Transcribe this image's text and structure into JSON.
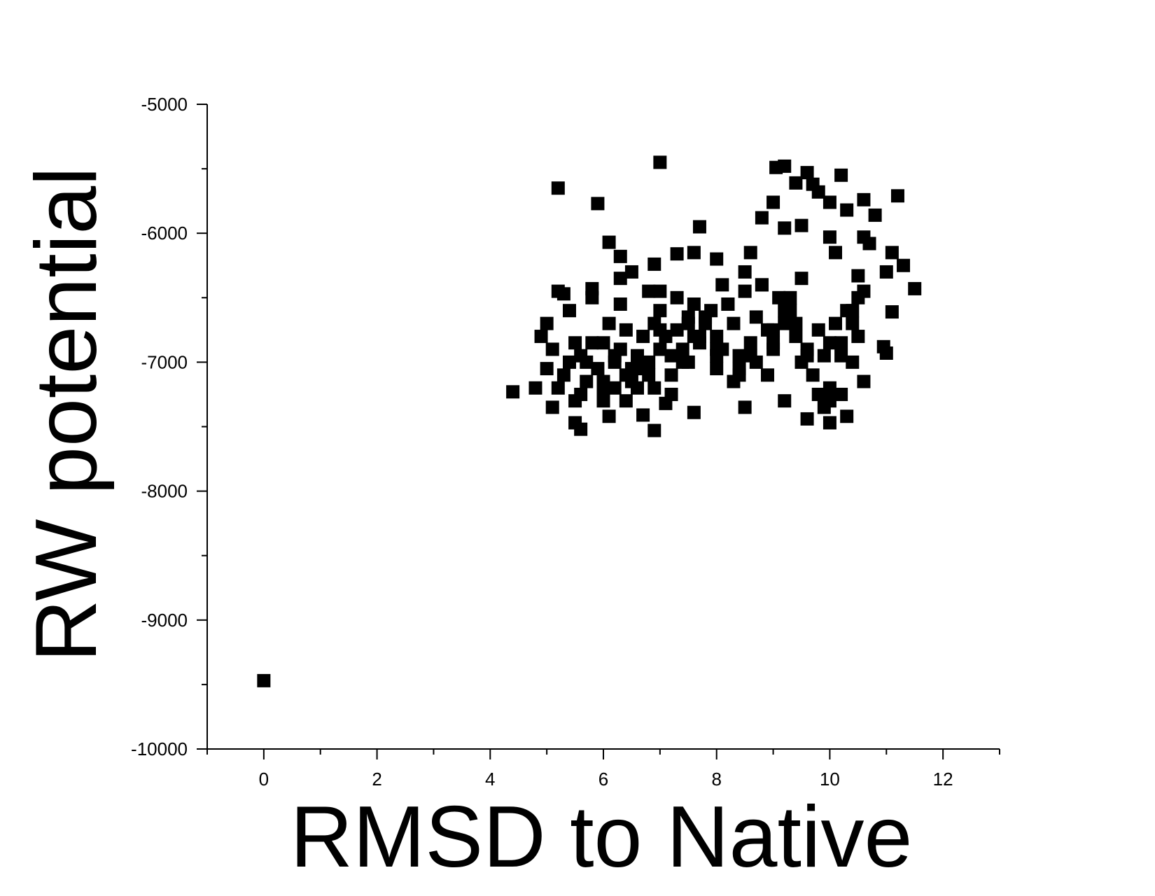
{
  "chart_data": {
    "type": "scatter",
    "xlabel": "RMSD to Native",
    "ylabel": "RW potential",
    "xlim": [
      -1,
      13
    ],
    "ylim": [
      -10000,
      -5000
    ],
    "xticks": [
      0,
      2,
      4,
      6,
      8,
      10,
      12
    ],
    "xminorticks": [
      -1,
      1,
      3,
      5,
      7,
      9,
      11,
      13
    ],
    "yticks": [
      -10000,
      -9000,
      -8000,
      -7000,
      -6000,
      -5000
    ],
    "yminorticks": [
      -9500,
      -8500,
      -7500,
      -6500,
      -5500
    ],
    "color": "#000000",
    "marker": "square",
    "x": [
      0,
      4.4,
      5.2,
      5.9,
      7.0,
      9.2,
      9.05,
      10.2,
      11.2,
      10.6,
      9.6,
      9.7,
      9.4,
      9.8,
      10.0,
      9.0,
      7.7,
      6.1,
      6.9,
      6.5,
      6.3,
      10.8,
      10.3,
      11.5,
      11.3,
      11.1,
      11.1,
      10.95,
      11.0,
      11.0,
      10.6,
      10.3,
      10.0,
      9.6,
      6.9,
      5.6,
      5.5,
      5.1,
      7.6,
      7.1,
      8.5,
      9.2,
      6.1,
      6.7,
      4.8,
      4.9,
      5.0,
      5.2,
      5.3,
      5.8,
      6.3,
      6.8,
      7.3,
      7.6,
      8.0,
      8.6,
      8.8,
      9.2,
      9.5,
      10.0,
      10.1,
      10.5,
      10.6,
      10.7,
      5.1,
      5.3,
      5.4,
      5.5,
      5.6,
      5.7,
      5.8,
      5.9,
      6.0,
      6.0,
      6.1,
      6.2,
      6.2,
      6.3,
      6.4,
      6.4,
      6.5,
      6.6,
      6.6,
      6.7,
      6.8,
      6.9,
      7.0,
      7.0,
      7.1,
      7.2,
      7.3,
      7.3,
      7.4,
      7.5,
      7.5,
      7.6,
      7.7,
      7.8,
      7.9,
      8.0,
      8.0,
      8.1,
      8.2,
      8.3,
      8.3,
      8.4,
      8.5,
      8.6,
      8.7,
      8.7,
      8.8,
      8.9,
      9.0,
      9.1,
      9.2,
      9.3,
      9.4,
      9.5,
      9.6,
      9.7,
      9.8,
      9.9,
      10.0,
      10.1,
      10.2,
      10.3,
      10.4,
      10.5,
      5.2,
      5.4,
      5.6,
      5.8,
      6.0,
      6.2,
      6.4,
      6.6,
      6.8,
      7.0,
      7.2,
      7.4,
      7.6,
      7.8,
      8.0,
      8.2,
      8.4,
      8.6,
      8.8,
      9.0,
      9.2,
      9.4,
      9.6,
      9.8,
      10.0,
      10.2,
      10.4,
      10.6,
      5.0,
      5.5,
      6.0,
      6.5,
      7.0,
      7.5,
      8.0,
      8.5,
      9.0,
      9.5,
      10.0,
      10.5,
      5.7,
      6.3,
      7.2,
      8.1,
      8.9,
      9.9,
      10.4,
      6.9,
      7.7,
      8.4,
      9.3,
      10.2
    ],
    "y": [
      -9470,
      -7230,
      -5650,
      -5770,
      -5450,
      -5480,
      -5490,
      -5550,
      -5710,
      -5740,
      -5530,
      -5620,
      -5610,
      -5680,
      -5760,
      -5760,
      -5950,
      -6070,
      -6240,
      -6300,
      -6180,
      -5860,
      -5820,
      -6430,
      -6250,
      -6150,
      -6610,
      -6880,
      -6930,
      -6300,
      -7150,
      -7420,
      -7470,
      -7440,
      -7530,
      -7520,
      -7470,
      -7350,
      -7390,
      -7320,
      -7350,
      -7300,
      -7420,
      -7410,
      -7200,
      -6800,
      -6700,
      -6450,
      -6470,
      -6430,
      -6350,
      -6450,
      -6160,
      -6150,
      -6200,
      -6150,
      -5880,
      -5960,
      -5940,
      -6030,
      -6150,
      -6330,
      -6030,
      -6080,
      -6900,
      -7100,
      -6600,
      -7300,
      -6950,
      -7150,
      -6500,
      -7050,
      -6850,
      -7250,
      -6700,
      -7000,
      -7200,
      -6900,
      -7100,
      -6750,
      -7050,
      -6950,
      -7200,
      -6800,
      -7000,
      -6700,
      -6900,
      -6600,
      -6800,
      -7100,
      -6500,
      -6750,
      -6900,
      -6650,
      -7000,
      -6550,
      -6800,
      -6700,
      -6600,
      -7050,
      -6800,
      -6900,
      -6550,
      -7150,
      -6700,
      -6950,
      -6450,
      -6850,
      -7000,
      -6650,
      -6400,
      -6750,
      -6900,
      -6500,
      -6700,
      -6600,
      -6800,
      -7000,
      -6900,
      -7100,
      -6750,
      -6950,
      -7200,
      -6700,
      -6850,
      -6600,
      -7000,
      -6500,
      -7200,
      -7000,
      -7250,
      -6850,
      -7150,
      -6950,
      -7300,
      -7050,
      -7100,
      -6750,
      -6950,
      -7000,
      -6800,
      -6650,
      -6900,
      -6550,
      -7050,
      -6950,
      -6400,
      -6850,
      -6600,
      -6700,
      -6950,
      -7250,
      -6850,
      -7250,
      -6700,
      -6450,
      -7050,
      -6850,
      -7300,
      -7150,
      -6450,
      -6700,
      -6950,
      -6300,
      -6750,
      -6350,
      -7300,
      -6800,
      -7000,
      -6550,
      -7250,
      -6400,
      -7100,
      -7350,
      -6600,
      -7200,
      -6850,
      -7100,
      -6500,
      -6950
    ]
  }
}
